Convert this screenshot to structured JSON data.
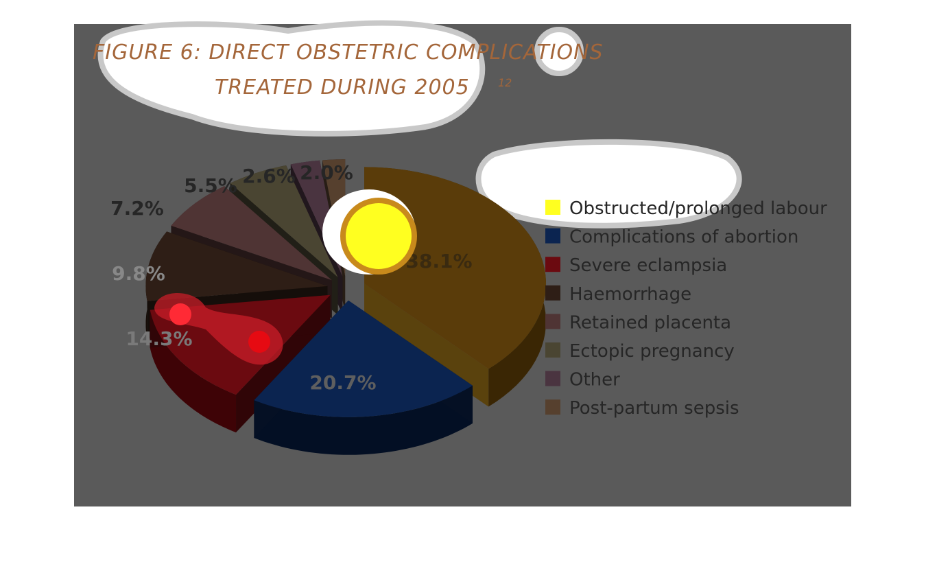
{
  "chart_data": {
    "type": "pie",
    "title_line1": "FIGURE 6: DIRECT OBSTETRIC COMPLICATIONS",
    "title_line2": "TREATED DURING 2005",
    "title_superscript": "12",
    "categories": [
      "Obstructed/prolonged labour",
      "Complications of abortion",
      "Severe eclampsia",
      "Haemorrhage",
      "Retained placenta",
      "Ectopic pregnancy",
      "Other",
      "Post-partum sepsis"
    ],
    "values": [
      38.1,
      20.7,
      14.3,
      9.8,
      7.2,
      5.5,
      2.6,
      2.0
    ],
    "value_labels": [
      "38.1%",
      "20.7%",
      "14.3%",
      "9.8%",
      "7.2%",
      "5.5%",
      "2.6%",
      "2.0%"
    ],
    "colors": [
      "#ffff20",
      "#0b2450",
      "#6b0a10",
      "#2e1e16",
      "#4f3434",
      "#4a4532",
      "#4a3440",
      "#56402e"
    ],
    "legend_position": "right",
    "style": "3d exploded pie"
  }
}
